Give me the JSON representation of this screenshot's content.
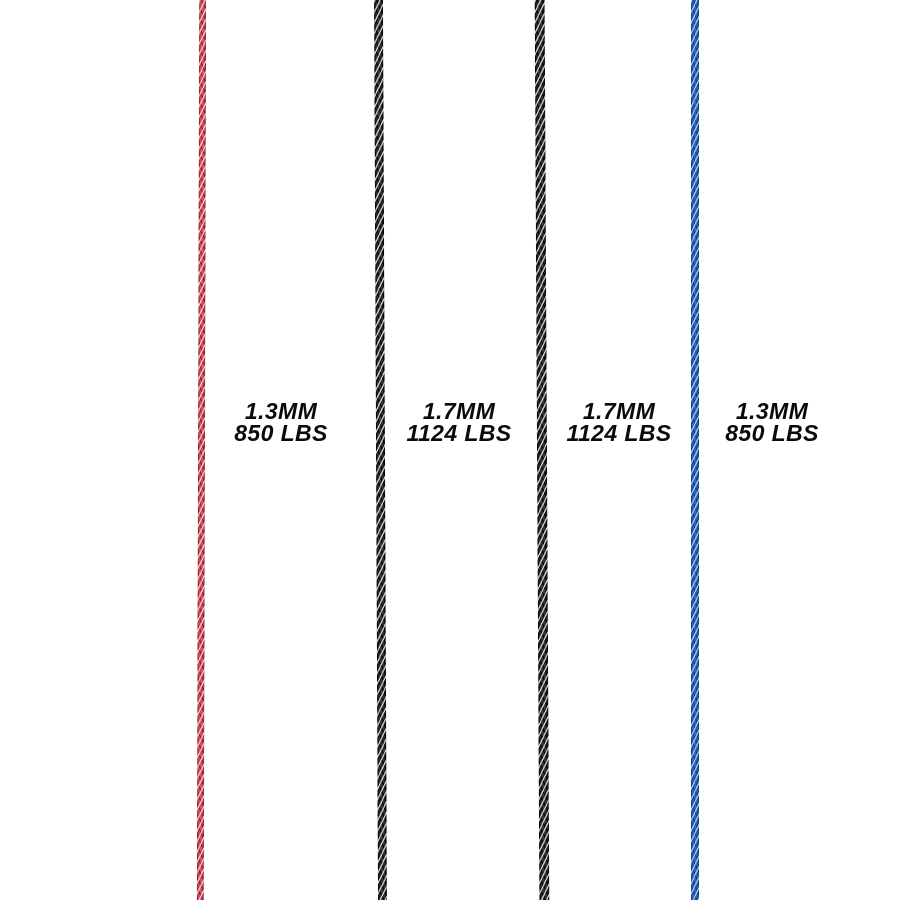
{
  "page": {
    "background_color": "#ffffff",
    "text_color": "#0a0a0a"
  },
  "cords": [
    {
      "id": "red-cord",
      "label": {
        "diameter": "1.3MM",
        "strength": "850 LBS"
      },
      "colors": {
        "base": "#d44f63",
        "light": "#f6c2c8",
        "dark": "#8e2338"
      }
    },
    {
      "id": "black-cord-left",
      "label": {
        "diameter": "1.7MM",
        "strength": "1124 LBS"
      },
      "colors": {
        "base": "#323236",
        "light": "#c9c9ce",
        "dark": "#050508"
      }
    },
    {
      "id": "black-cord-right",
      "label": {
        "diameter": "1.7MM",
        "strength": "1124 LBS"
      },
      "colors": {
        "base": "#323236",
        "light": "#c9c9ce",
        "dark": "#050508"
      }
    },
    {
      "id": "blue-cord",
      "label": {
        "diameter": "1.3MM",
        "strength": "850 LBS"
      },
      "colors": {
        "base": "#2b63b9",
        "light": "#9cc6f0",
        "dark": "#14407e"
      }
    }
  ]
}
